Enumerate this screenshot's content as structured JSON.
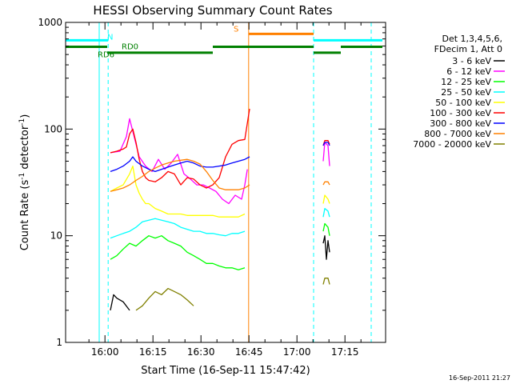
{
  "chart_data": {
    "type": "line",
    "title": "HESSI Observing Summary Count Rates",
    "xlabel": "Start Time (16-Sep-11 15:47:42)",
    "ylabel": "Count Rate (s",
    "ylabel_sup": "-1",
    "ylabel_tail": " detector",
    "ylabel_sup2": "-1",
    "ylabel_end": ")",
    "x_units": "minutes after 15:47:42",
    "xlim": [
      0,
      100
    ],
    "ylim": [
      1,
      1000
    ],
    "y_scale": "log",
    "x_ticks": [
      {
        "label": "16:00",
        "value": 12.3
      },
      {
        "label": "16:15",
        "value": 27.3
      },
      {
        "label": "16:30",
        "value": 42.3
      },
      {
        "label": "16:45",
        "value": 57.3
      },
      {
        "label": "17:00",
        "value": 72.3
      },
      {
        "label": "17:15",
        "value": 87.3
      }
    ],
    "y_ticks": [
      {
        "label": "1",
        "value": 1
      },
      {
        "label": "10",
        "value": 10
      },
      {
        "label": "100",
        "value": 100
      },
      {
        "label": "1000",
        "value": 1000
      }
    ],
    "legend_header": [
      "Det 1,3,4,5,6,",
      "FDecim 1, Att 0"
    ],
    "legend_placement": "right",
    "series": [
      {
        "name": "3 - 6 keV",
        "color": "#000000",
        "segments": [
          [
            [
              14,
              2.0
            ],
            [
              15,
              2.8
            ],
            [
              16,
              2.6
            ],
            [
              18,
              2.4
            ],
            [
              20,
              2.0
            ]
          ],
          [
            [
              80.5,
              8.5
            ],
            [
              81,
              10
            ],
            [
              81.5,
              6
            ],
            [
              82,
              9
            ],
            [
              82.5,
              7
            ]
          ]
        ]
      },
      {
        "name": "6 - 12 keV",
        "color": "#ff00ff",
        "segments": [
          [
            [
              14,
              60
            ],
            [
              17,
              62
            ],
            [
              19,
              85
            ],
            [
              20,
              125
            ],
            [
              21,
              95
            ],
            [
              23,
              55
            ],
            [
              25,
              45
            ],
            [
              27,
              40
            ],
            [
              29,
              52
            ],
            [
              31,
              42
            ],
            [
              33,
              48
            ],
            [
              35,
              58
            ],
            [
              37,
              38
            ],
            [
              39,
              34
            ],
            [
              41,
              30
            ],
            [
              43,
              30
            ],
            [
              45,
              28
            ],
            [
              47,
              26
            ],
            [
              49,
              22
            ],
            [
              51,
              20
            ],
            [
              53,
              24
            ],
            [
              55,
              22
            ],
            [
              56,
              30
            ],
            [
              56.8,
              42
            ]
          ],
          [
            [
              80.5,
              50
            ],
            [
              81,
              75
            ],
            [
              82,
              70
            ],
            [
              82.5,
              45
            ]
          ]
        ]
      },
      {
        "name": "12 - 25 keV",
        "color": "#00ff00",
        "segments": [
          [
            [
              14,
              6.0
            ],
            [
              16,
              6.5
            ],
            [
              18,
              7.5
            ],
            [
              20,
              8.5
            ],
            [
              22,
              8
            ],
            [
              24,
              9
            ],
            [
              26,
              10
            ],
            [
              28,
              9.5
            ],
            [
              30,
              10
            ],
            [
              32,
              9
            ],
            [
              34,
              8.5
            ],
            [
              36,
              8
            ],
            [
              38,
              7
            ],
            [
              40,
              6.5
            ],
            [
              42,
              6
            ],
            [
              44,
              5.5
            ],
            [
              46,
              5.5
            ],
            [
              48,
              5.2
            ],
            [
              50,
              5
            ],
            [
              52,
              5
            ],
            [
              54,
              4.8
            ],
            [
              56,
              5
            ]
          ],
          [
            [
              80.5,
              11
            ],
            [
              81,
              13
            ],
            [
              82,
              12
            ],
            [
              82.5,
              10
            ]
          ]
        ]
      },
      {
        "name": "25 - 50 keV",
        "color": "#00ffff",
        "segments": [
          [
            [
              14,
              9.5
            ],
            [
              16,
              10
            ],
            [
              18,
              10.5
            ],
            [
              20,
              11
            ],
            [
              22,
              12
            ],
            [
              24,
              13.5
            ],
            [
              26,
              14
            ],
            [
              28,
              14.5
            ],
            [
              30,
              14
            ],
            [
              32,
              13.5
            ],
            [
              34,
              13
            ],
            [
              36,
              12
            ],
            [
              38,
              11.5
            ],
            [
              40,
              11
            ],
            [
              42,
              11
            ],
            [
              44,
              10.5
            ],
            [
              46,
              10.5
            ],
            [
              48,
              10.2
            ],
            [
              50,
              10
            ],
            [
              52,
              10.5
            ],
            [
              54,
              10.5
            ],
            [
              56,
              11
            ]
          ],
          [
            [
              80.5,
              15
            ],
            [
              81,
              18
            ],
            [
              82,
              17
            ],
            [
              82.5,
              15
            ]
          ]
        ]
      },
      {
        "name": "50 - 100 keV",
        "color": "#ffff00",
        "segments": [
          [
            [
              14,
              26
            ],
            [
              16,
              28
            ],
            [
              18,
              30
            ],
            [
              20,
              38
            ],
            [
              21,
              45
            ],
            [
              22,
              30
            ],
            [
              23,
              25
            ],
            [
              24,
              22
            ],
            [
              25,
              20
            ],
            [
              26,
              20
            ],
            [
              28,
              18
            ],
            [
              30,
              17
            ],
            [
              32,
              16
            ],
            [
              34,
              16
            ],
            [
              36,
              16
            ],
            [
              38,
              15.5
            ],
            [
              40,
              15.5
            ],
            [
              42,
              15.5
            ],
            [
              44,
              15.5
            ],
            [
              46,
              15.5
            ],
            [
              48,
              15
            ],
            [
              50,
              15
            ],
            [
              52,
              15
            ],
            [
              54,
              15
            ],
            [
              56,
              16
            ]
          ],
          [
            [
              80.5,
              20
            ],
            [
              81,
              24
            ],
            [
              82,
              22
            ],
            [
              82.5,
              20
            ]
          ]
        ]
      },
      {
        "name": "100 - 300 keV",
        "color": "#ff0000",
        "segments": [
          [
            [
              14,
              60
            ],
            [
              16,
              62
            ],
            [
              18,
              65
            ],
            [
              19,
              68
            ],
            [
              20,
              90
            ],
            [
              21,
              100
            ],
            [
              22,
              75
            ],
            [
              23,
              52
            ],
            [
              24,
              40
            ],
            [
              25,
              35
            ],
            [
              26,
              33
            ],
            [
              28,
              32
            ],
            [
              30,
              35
            ],
            [
              32,
              40
            ],
            [
              34,
              38
            ],
            [
              36,
              30
            ],
            [
              38,
              35
            ],
            [
              40,
              34
            ],
            [
              42,
              30
            ],
            [
              44,
              28
            ],
            [
              46,
              30
            ],
            [
              48,
              35
            ],
            [
              50,
              55
            ],
            [
              52,
              72
            ],
            [
              54,
              78
            ],
            [
              56,
              80
            ],
            [
              57.5,
              155
            ]
          ],
          [
            [
              80.5,
              70
            ],
            [
              81,
              78
            ],
            [
              82,
              78
            ],
            [
              82.5,
              72
            ]
          ]
        ]
      },
      {
        "name": "300 - 800 keV",
        "color": "#0000ff",
        "segments": [
          [
            [
              14,
              40
            ],
            [
              16,
              42
            ],
            [
              18,
              45
            ],
            [
              20,
              50
            ],
            [
              21,
              55
            ],
            [
              22,
              50
            ],
            [
              24,
              45
            ],
            [
              26,
              42
            ],
            [
              28,
              40
            ],
            [
              30,
              42
            ],
            [
              32,
              44
            ],
            [
              34,
              46
            ],
            [
              36,
              48
            ],
            [
              38,
              50
            ],
            [
              40,
              48
            ],
            [
              42,
              45
            ],
            [
              44,
              44
            ],
            [
              46,
              44
            ],
            [
              48,
              45
            ],
            [
              50,
              46
            ],
            [
              52,
              48
            ],
            [
              54,
              50
            ],
            [
              56,
              52
            ],
            [
              57.5,
              55
            ]
          ],
          [
            [
              80.5,
              70
            ],
            [
              81,
              75
            ],
            [
              82,
              75
            ],
            [
              82.5,
              70
            ]
          ]
        ]
      },
      {
        "name": "800 - 7000 keV",
        "color": "#ff8000",
        "segments": [
          [
            [
              14,
              26
            ],
            [
              16,
              27
            ],
            [
              18,
              28
            ],
            [
              20,
              30
            ],
            [
              22,
              33
            ],
            [
              24,
              36
            ],
            [
              26,
              40
            ],
            [
              28,
              43
            ],
            [
              30,
              46
            ],
            [
              32,
              48
            ],
            [
              34,
              50
            ],
            [
              36,
              51
            ],
            [
              38,
              52
            ],
            [
              40,
              50
            ],
            [
              42,
              47
            ],
            [
              44,
              40
            ],
            [
              46,
              33
            ],
            [
              48,
              28
            ],
            [
              50,
              27
            ],
            [
              52,
              27
            ],
            [
              54,
              27
            ],
            [
              56,
              28
            ],
            [
              57.5,
              30
            ]
          ],
          [
            [
              80.5,
              30
            ],
            [
              81,
              32
            ],
            [
              82,
              32
            ],
            [
              82.5,
              30
            ]
          ]
        ]
      },
      {
        "name": "7000 - 20000 keV",
        "color": "#808000",
        "segments": [
          [
            [
              22,
              2
            ],
            [
              24,
              2.2
            ],
            [
              26,
              2.6
            ],
            [
              28,
              3.0
            ],
            [
              30,
              2.8
            ],
            [
              32,
              3.2
            ],
            [
              34,
              3.0
            ],
            [
              36,
              2.8
            ],
            [
              38,
              2.5
            ],
            [
              40,
              2.2
            ]
          ],
          [
            [
              80.5,
              3.5
            ],
            [
              81,
              4
            ],
            [
              82,
              4
            ],
            [
              82.5,
              3.5
            ]
          ]
        ]
      }
    ],
    "annotations": [
      {
        "text": "N",
        "x": 13,
        "y": 690,
        "color": "#00ffff"
      },
      {
        "text": "RD0",
        "x": 17.5,
        "y": 560,
        "color": "#008000"
      },
      {
        "text": "RD6",
        "x": 10,
        "y": 470,
        "color": "#008000"
      },
      {
        "text": "S",
        "x": 52.5,
        "y": 820,
        "color": "#ff8000"
      }
    ],
    "flag_bars": [
      {
        "color": "#00ffff",
        "y": 680,
        "segments": [
          [
            0,
            13.3
          ],
          [
            77.5,
            99
          ]
        ]
      },
      {
        "color": "#ff8000",
        "y": 780,
        "segments": [
          [
            57.2,
            77.5
          ]
        ]
      },
      {
        "color": "#008000",
        "y": 590,
        "segments": [
          [
            0,
            13
          ],
          [
            46,
            77.5
          ],
          [
            86,
            99
          ]
        ]
      },
      {
        "color": "#008000",
        "y": 520,
        "segments": [
          [
            13,
            46
          ],
          [
            77.5,
            86
          ]
        ]
      }
    ],
    "vertical_markers": [
      {
        "x": 13.3,
        "color": "#00ffff",
        "dashed": true
      },
      {
        "x": 95.5,
        "color": "#00ffff",
        "dashed": true
      },
      {
        "x": 77.5,
        "color": "#00ffff",
        "dashed": true
      },
      {
        "x": 10.5,
        "color": "#00ffff",
        "dashed": false
      },
      {
        "x": 57.2,
        "color": "#ff8000",
        "dashed": false
      }
    ],
    "footer_stamp": "16-Sep-2011 21:27"
  }
}
